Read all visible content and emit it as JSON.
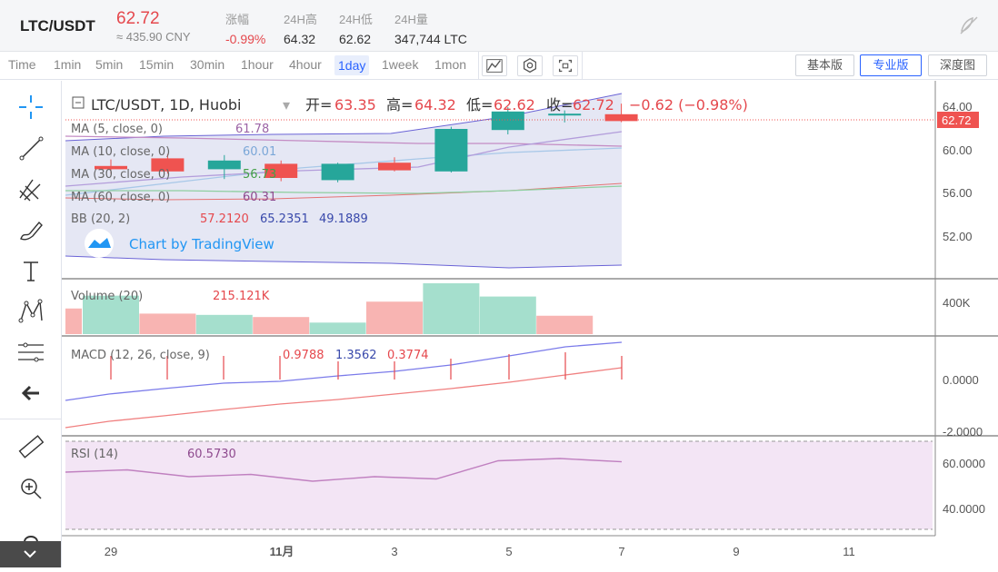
{
  "header": {
    "pair": "LTC/USDT",
    "price": "62.72",
    "cny": "≈ 435.90 CNY",
    "stats": [
      {
        "label": "涨幅",
        "value": "-0.99%",
        "red": true
      },
      {
        "label": "24H高",
        "value": "64.32",
        "red": false
      },
      {
        "label": "24H低",
        "value": "62.62",
        "red": false
      },
      {
        "label": "24H量",
        "value": "347,744 LTC",
        "red": false
      }
    ]
  },
  "toolbar": {
    "timeframes": [
      "Time",
      "1min",
      "5min",
      "15min",
      "30min",
      "1hour",
      "4hour",
      "1day",
      "1week",
      "1mon"
    ],
    "active_timeframe": "1day",
    "views": [
      "基本版",
      "专业版",
      "深度图"
    ],
    "active_view": "专业版"
  },
  "legend": {
    "title": "LTC/USDT, 1D, Huobi",
    "open_label": "开=",
    "open": "63.35",
    "high_label": "高=",
    "high": "64.32",
    "low_label": "低=",
    "low": "62.62",
    "close_label": "收=",
    "close": "62.72",
    "change": "−0.62 (−0.98%)",
    "ma5_label": "MA (5, close, 0)",
    "ma5": "61.78",
    "ma10_label": "MA (10, close, 0)",
    "ma10": "60.01",
    "ma30_label": "MA (30, close, 0)",
    "ma30": "56.73",
    "ma60_label": "MA (60, close, 0)",
    "ma60": "60.31",
    "bb_label": "BB (20, 2)",
    "bb_mid": "57.2120",
    "bb_up": "65.2351",
    "bb_low": "49.1889",
    "watermark": "Chart by TradingView",
    "volume_label": "Volume (20)",
    "volume": "215.121K",
    "macd_label": "MACD (12, 26, close, 9)",
    "macd_hist": "0.9788",
    "macd": "1.3562",
    "macd_signal": "0.3774",
    "rsi_label": "RSI (14)",
    "rsi": "60.5730"
  },
  "axes": {
    "price_ticks": [
      "64.00",
      "60.00",
      "56.00",
      "52.00"
    ],
    "last_price": "62.72",
    "volume_ticks": [
      "400K"
    ],
    "macd_ticks": [
      "0.0000",
      "-2.0000"
    ],
    "rsi_ticks": [
      "60.0000",
      "40.0000"
    ],
    "time_ticks": [
      "29",
      "11月",
      "3",
      "5",
      "7",
      "9",
      "11"
    ]
  },
  "colors": {
    "up": "#26a69a",
    "down": "#ef5350",
    "accent": "#2962ff",
    "rsi_fill": "#f3e5f5"
  },
  "tools": [
    "crosshair-icon",
    "trend-line-icon",
    "pitchfork-icon",
    "brush-icon",
    "text-icon",
    "pattern-icon",
    "fib-icon",
    "back-arrow-icon",
    "ruler-icon",
    "zoom-in-icon",
    "magnet-icon"
  ],
  "chart_data": {
    "type": "candlestick",
    "dates": [
      "10-29",
      "10-30",
      "10-31",
      "11-01",
      "11-02",
      "11-03",
      "11-04",
      "11-05",
      "11-06",
      "11-07"
    ],
    "ohlc": [
      [
        58.6,
        59.2,
        57.9,
        58.3
      ],
      [
        59.3,
        59.7,
        57.9,
        58.1
      ],
      [
        58.3,
        59.6,
        57.4,
        59.1
      ],
      [
        58.8,
        59.1,
        57.2,
        57.5
      ],
      [
        57.3,
        58.9,
        57.1,
        58.8
      ],
      [
        58.9,
        59.4,
        58.1,
        58.2
      ],
      [
        58.1,
        62.2,
        58.0,
        62.0
      ],
      [
        61.9,
        64.0,
        61.5,
        63.6
      ],
      [
        63.4,
        63.7,
        62.6,
        63.4
      ],
      [
        63.35,
        64.32,
        62.62,
        62.72
      ]
    ],
    "volume": [
      300000,
      450000,
      240000,
      225000,
      200000,
      135000,
      380000,
      595000,
      440000,
      215121
    ],
    "volume_up": [
      false,
      true,
      false,
      true,
      false,
      true,
      false,
      true,
      true,
      false
    ],
    "rsi": [
      56,
      57,
      54,
      55,
      52,
      54,
      53,
      61,
      62,
      60.57
    ]
  }
}
